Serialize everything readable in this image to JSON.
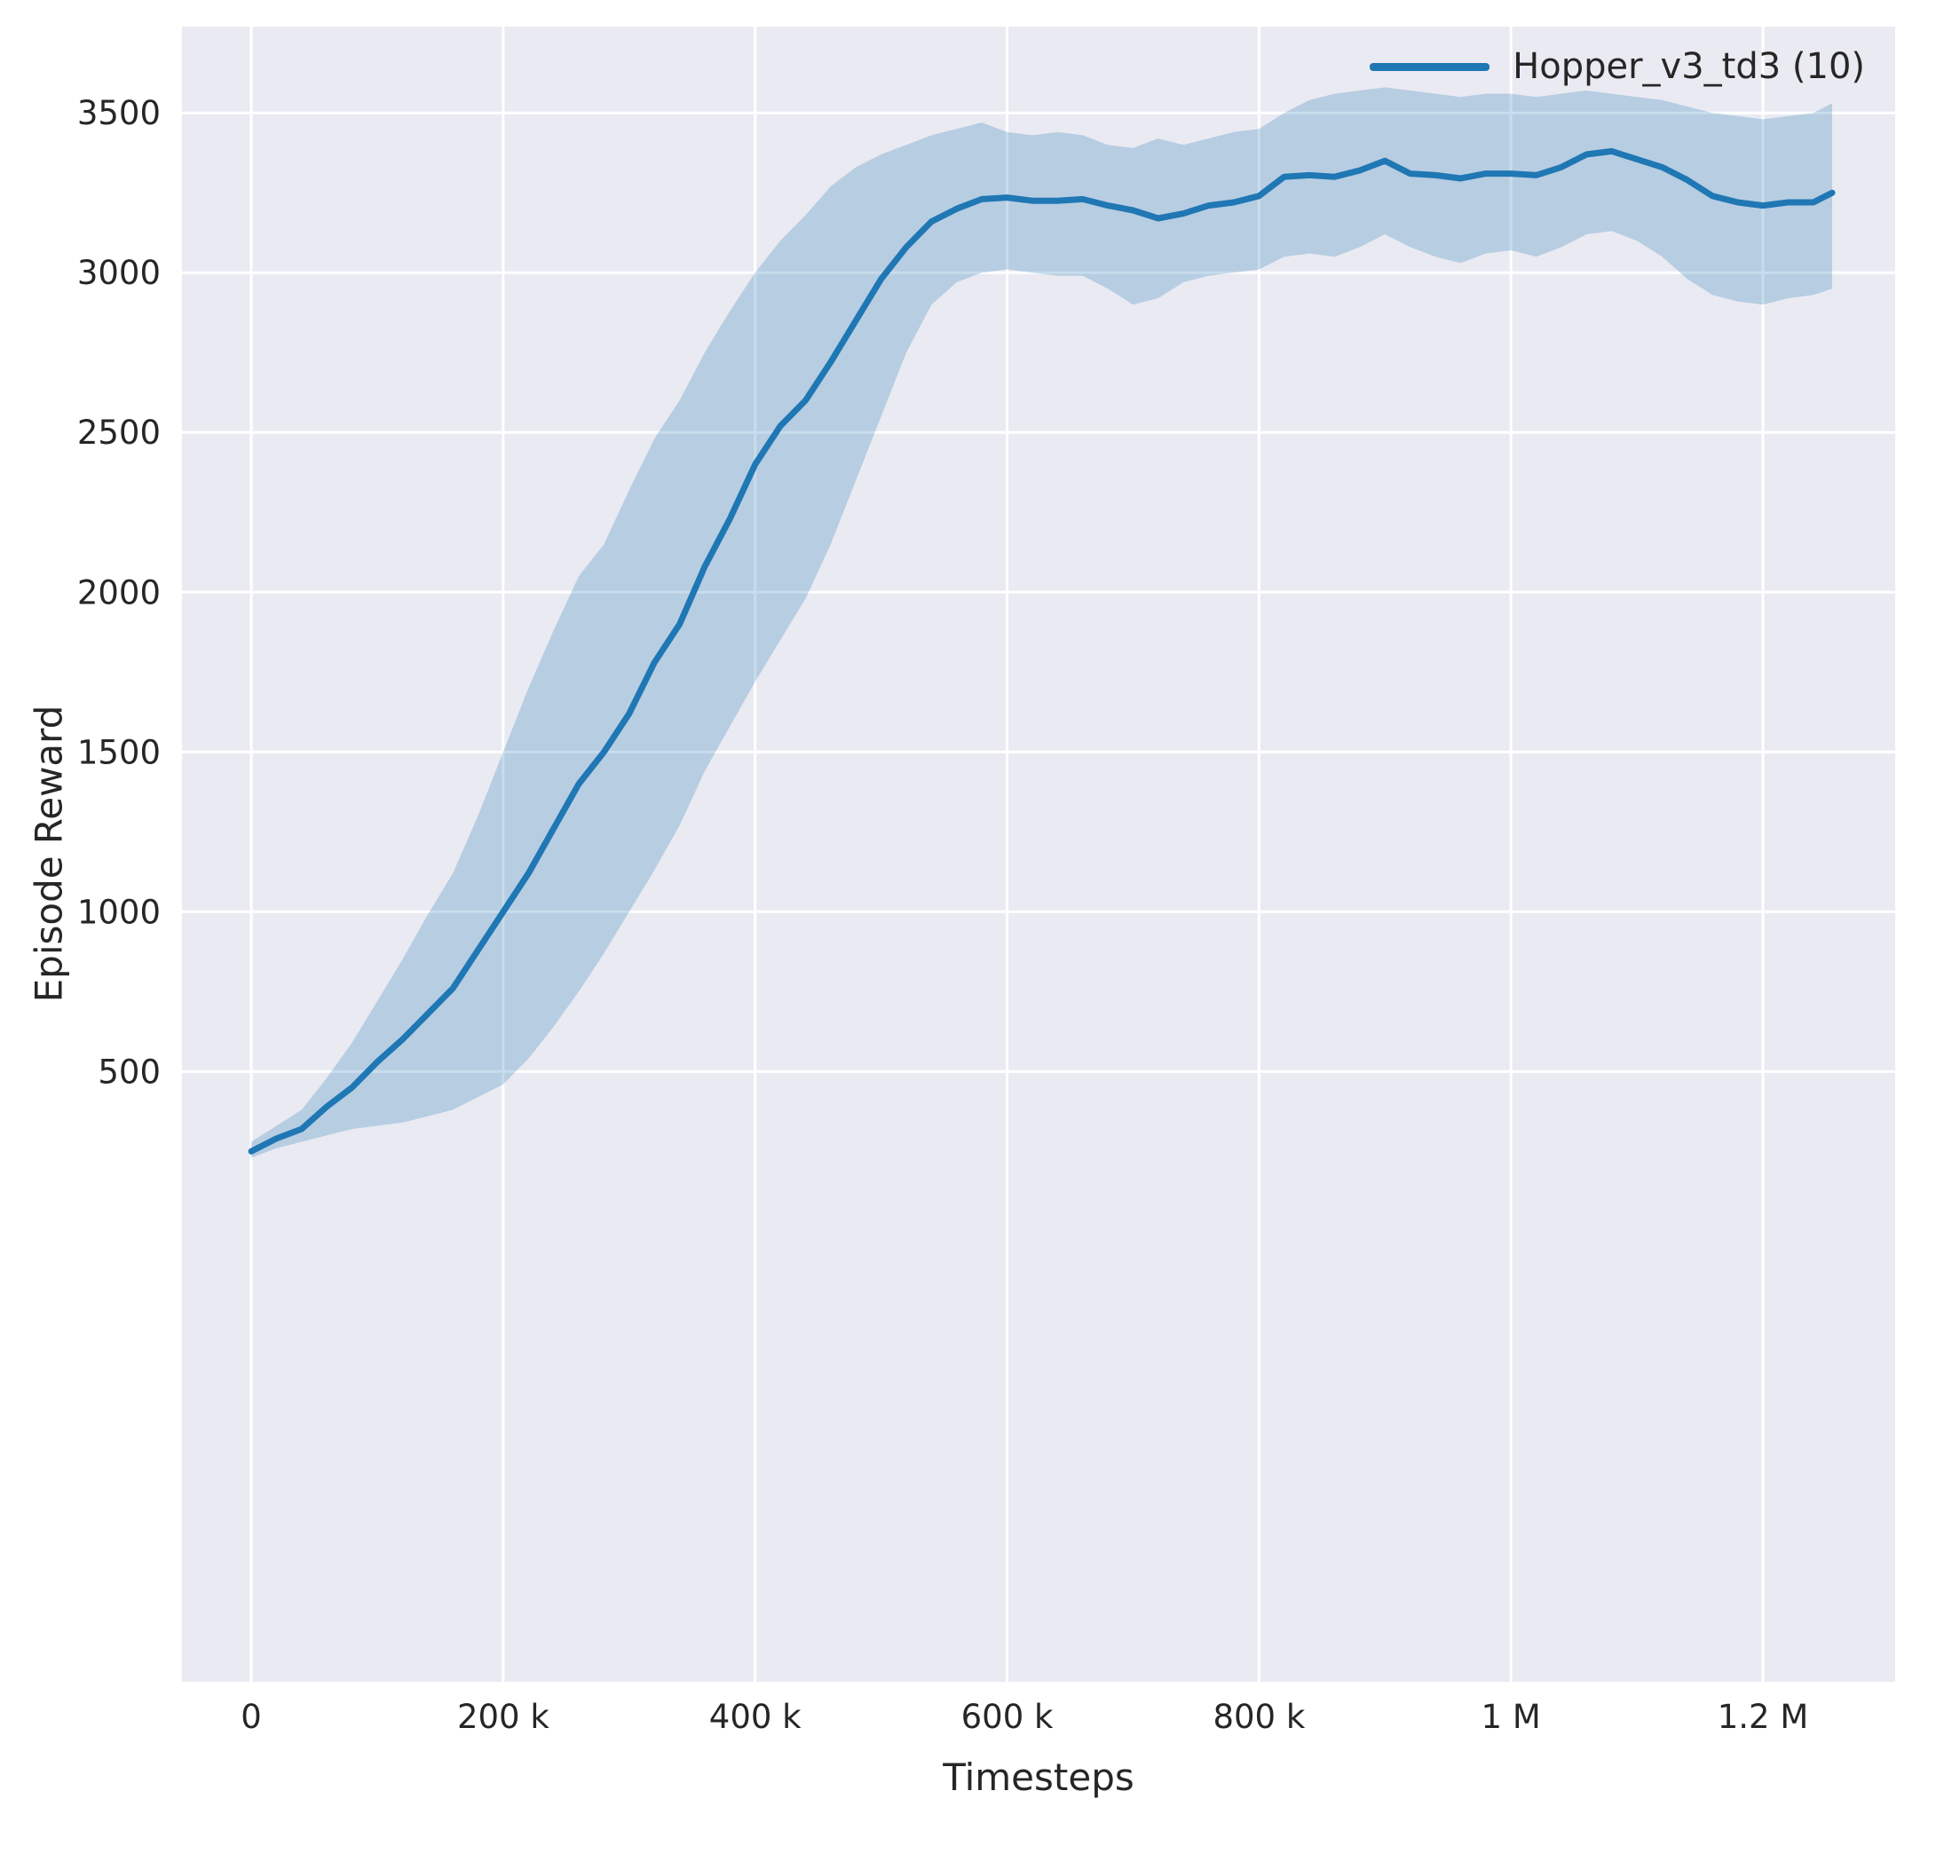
{
  "figure": {
    "background": "#ffffff",
    "plot_background": "#eaeaf2",
    "grid_color": "#ffffff",
    "text_color": "#262626"
  },
  "chart_data": {
    "type": "line",
    "title": "",
    "xlabel": "Timesteps",
    "ylabel": "Episode Reward",
    "grid": true,
    "legend": {
      "position": "upper right",
      "entries": [
        "Hopper_v3_td3 (10)"
      ]
    },
    "xlim": [
      -55000,
      1305000
    ],
    "ylim": [
      -1410,
      3770
    ],
    "xticks": {
      "values": [
        0,
        200000,
        400000,
        600000,
        800000,
        1000000,
        1200000
      ],
      "labels": [
        "0",
        "200 k",
        "400 k",
        "600 k",
        "800 k",
        "1 M",
        "1.2 M"
      ]
    },
    "yticks": {
      "values": [
        500,
        1000,
        1500,
        2000,
        2500,
        3000,
        3500
      ],
      "labels": [
        "500",
        "1000",
        "1500",
        "2000",
        "2500",
        "3000",
        "3500"
      ]
    },
    "series": [
      {
        "name": "Hopper_v3_td3 (10)",
        "color": "#1f77b4",
        "band_color": "#1f77b4",
        "band_opacity": 0.25,
        "line_width": 7,
        "x": [
          0,
          20000,
          40000,
          60000,
          80000,
          100000,
          120000,
          140000,
          160000,
          180000,
          200000,
          220000,
          240000,
          260000,
          280000,
          300000,
          320000,
          340000,
          360000,
          380000,
          400000,
          420000,
          440000,
          460000,
          480000,
          500000,
          520000,
          540000,
          560000,
          580000,
          600000,
          620000,
          640000,
          660000,
          680000,
          700000,
          720000,
          740000,
          760000,
          780000,
          800000,
          820000,
          840000,
          860000,
          880000,
          900000,
          920000,
          940000,
          960000,
          980000,
          1000000,
          1020000,
          1040000,
          1060000,
          1080000,
          1100000,
          1120000,
          1140000,
          1160000,
          1180000,
          1200000,
          1220000,
          1240000,
          1255000
        ],
        "mean": [
          250,
          290,
          320,
          390,
          450,
          530,
          600,
          680,
          760,
          880,
          1000,
          1120,
          1260,
          1400,
          1500,
          1620,
          1780,
          1900,
          2080,
          2230,
          2400,
          2520,
          2600,
          2720,
          2850,
          2980,
          3080,
          3160,
          3200,
          3230,
          3235,
          3225,
          3225,
          3230,
          3210,
          3195,
          3170,
          3185,
          3210,
          3220,
          3240,
          3300,
          3305,
          3300,
          3320,
          3350,
          3310,
          3305,
          3295,
          3310,
          3310,
          3305,
          3330,
          3370,
          3380,
          3355,
          3330,
          3290,
          3240,
          3220,
          3210,
          3220,
          3220,
          3250
        ],
        "lower": [
          230,
          260,
          280,
          300,
          320,
          330,
          340,
          360,
          380,
          420,
          460,
          540,
          640,
          750,
          870,
          1000,
          1130,
          1270,
          1440,
          1580,
          1720,
          1850,
          1980,
          2150,
          2350,
          2550,
          2750,
          2900,
          2970,
          3000,
          3010,
          3000,
          2990,
          2990,
          2950,
          2900,
          2920,
          2970,
          2990,
          3000,
          3010,
          3050,
          3060,
          3050,
          3080,
          3120,
          3080,
          3050,
          3030,
          3060,
          3070,
          3050,
          3080,
          3120,
          3130,
          3100,
          3050,
          2980,
          2930,
          2910,
          2900,
          2920,
          2930,
          2950
        ],
        "upper": [
          280,
          330,
          380,
          480,
          590,
          720,
          850,
          990,
          1120,
          1300,
          1500,
          1700,
          1880,
          2050,
          2150,
          2320,
          2480,
          2600,
          2750,
          2880,
          3000,
          3100,
          3180,
          3270,
          3330,
          3370,
          3400,
          3430,
          3450,
          3470,
          3440,
          3430,
          3440,
          3430,
          3400,
          3390,
          3420,
          3400,
          3420,
          3440,
          3450,
          3500,
          3540,
          3560,
          3570,
          3580,
          3570,
          3560,
          3550,
          3560,
          3560,
          3550,
          3560,
          3570,
          3560,
          3550,
          3540,
          3520,
          3500,
          3490,
          3480,
          3490,
          3500,
          3530
        ]
      }
    ]
  }
}
